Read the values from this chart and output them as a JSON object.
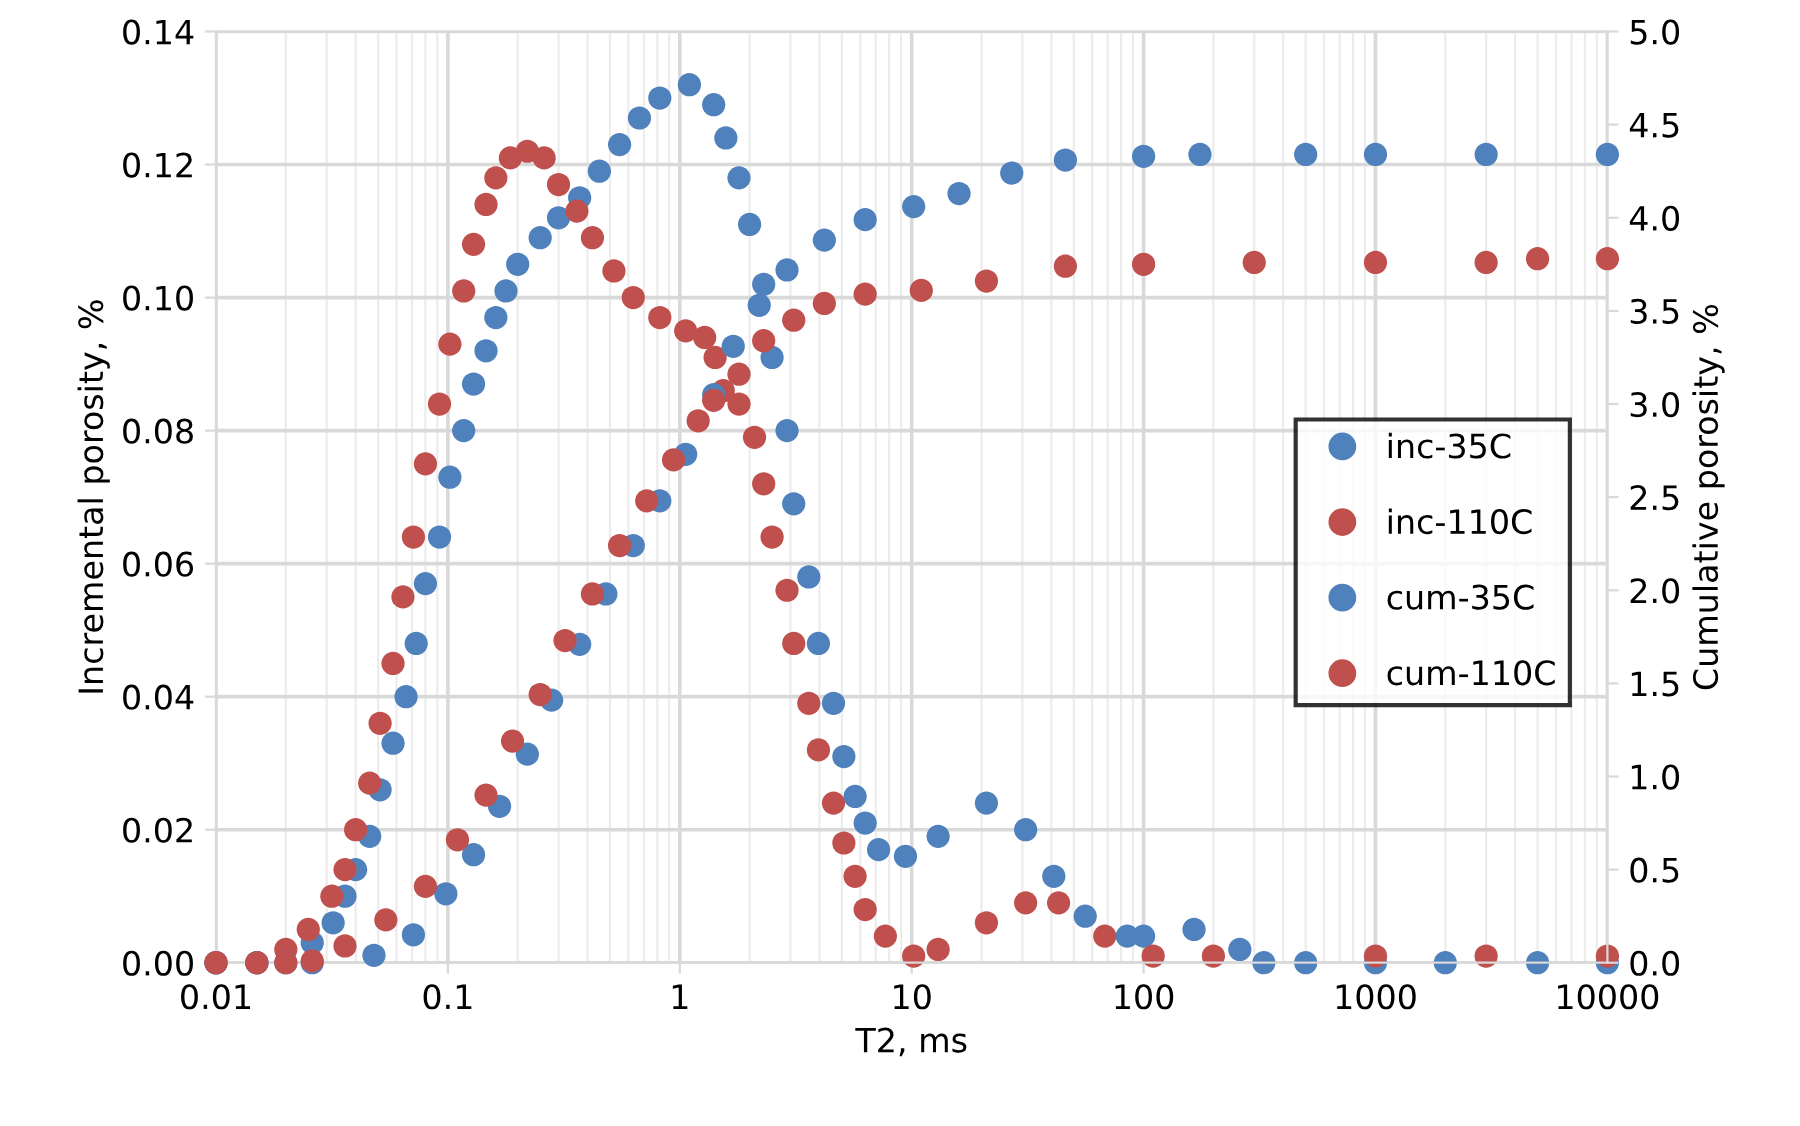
{
  "chart_data": {
    "type": "scatter",
    "xlabel": "T2, ms",
    "ylabel": "Incremental porosity, %",
    "y2label": "Cumulative porosity, %",
    "log": "x",
    "grid": true,
    "legend": "right",
    "marker": "circle",
    "xlim": [
      0.01,
      10000
    ],
    "xticks": [
      0.01,
      0.1,
      1,
      10,
      100,
      1000,
      10000
    ],
    "ylim": [
      0,
      0.14
    ],
    "yticks": [
      {
        "value": 0,
        "label": "0.00"
      },
      {
        "value": 0.02,
        "label": "0.02"
      },
      {
        "value": 0.04,
        "label": "0.04"
      },
      {
        "value": 0.06,
        "label": "0.06"
      },
      {
        "value": 0.08,
        "label": "0.08"
      },
      {
        "value": 0.1,
        "label": "0.10"
      },
      {
        "value": 0.12,
        "label": "0.12"
      },
      {
        "value": 0.14,
        "label": "0.14"
      }
    ],
    "y2lim": [
      0,
      5
    ],
    "y2ticks": [
      {
        "value": 0,
        "label": "0.0"
      },
      {
        "value": 0.5,
        "label": "0.5"
      },
      {
        "value": 1,
        "label": "1.0"
      },
      {
        "value": 1.5,
        "label": "1.5"
      },
      {
        "value": 2,
        "label": "2.0"
      },
      {
        "value": 2.5,
        "label": "2.5"
      },
      {
        "value": 3,
        "label": "3.0"
      },
      {
        "value": 3.5,
        "label": "3.5"
      },
      {
        "value": 4,
        "label": "4.0"
      },
      {
        "value": 4.5,
        "label": "4.5"
      },
      {
        "value": 5,
        "label": "5.0"
      }
    ],
    "series": [
      {
        "name": "inc-35C",
        "color": "#4f81bd",
        "x": [
          0.01,
          0.015,
          0.026,
          0.032,
          0.036,
          0.04,
          0.046,
          0.051,
          0.058,
          0.066,
          0.073,
          0.08,
          0.092,
          0.102,
          0.117,
          0.129,
          0.146,
          0.161,
          0.178,
          0.2,
          0.25,
          0.3,
          0.37,
          0.45,
          0.55,
          0.67,
          0.82,
          1.1,
          1.4,
          1.58,
          1.8,
          2.0,
          2.3,
          2.5,
          2.9,
          3.1,
          3.6,
          3.96,
          4.6,
          5.1,
          5.7,
          6.3,
          7.2,
          9.4,
          13,
          21,
          31,
          41,
          56,
          85,
          100,
          165,
          260,
          330,
          500,
          1000,
          2000,
          5000,
          10000
        ],
        "values": [
          0,
          0,
          0.003,
          0.006,
          0.01,
          0.014,
          0.019,
          0.026,
          0.033,
          0.04,
          0.048,
          0.057,
          0.064,
          0.073,
          0.08,
          0.087,
          0.092,
          0.097,
          0.101,
          0.105,
          0.109,
          0.112,
          0.115,
          0.119,
          0.123,
          0.127,
          0.13,
          0.132,
          0.129,
          0.124,
          0.118,
          0.111,
          0.102,
          0.091,
          0.08,
          0.069,
          0.058,
          0.048,
          0.039,
          0.031,
          0.025,
          0.021,
          0.017,
          0.016,
          0.019,
          0.024,
          0.02,
          0.013,
          0.007,
          0.004,
          0.004,
          0.005,
          0.002,
          0,
          0,
          0,
          0,
          0,
          0
        ]
      },
      {
        "name": "inc-110C",
        "color": "#c0504d",
        "x": [
          0.01,
          0.015,
          0.02,
          0.025,
          0.0316,
          0.036,
          0.04,
          0.046,
          0.051,
          0.058,
          0.064,
          0.071,
          0.08,
          0.092,
          0.102,
          0.117,
          0.129,
          0.146,
          0.161,
          0.186,
          0.22,
          0.26,
          0.3,
          0.36,
          0.42,
          0.52,
          0.63,
          0.82,
          1.06,
          1.28,
          1.42,
          1.54,
          1.8,
          2.1,
          2.3,
          2.5,
          2.9,
          3.1,
          3.6,
          3.96,
          4.6,
          5.1,
          5.7,
          6.3,
          7.7,
          10.2,
          13,
          21,
          31,
          43,
          68,
          110,
          200,
          1000,
          3000,
          10000
        ],
        "values": [
          0,
          0,
          0.002,
          0.005,
          0.01,
          0.014,
          0.02,
          0.027,
          0.036,
          0.045,
          0.055,
          0.064,
          0.075,
          0.084,
          0.093,
          0.101,
          0.108,
          0.114,
          0.118,
          0.121,
          0.122,
          0.121,
          0.117,
          0.113,
          0.109,
          0.104,
          0.1,
          0.097,
          0.095,
          0.094,
          0.091,
          0.086,
          0.084,
          0.079,
          0.072,
          0.064,
          0.056,
          0.048,
          0.039,
          0.032,
          0.024,
          0.018,
          0.013,
          0.008,
          0.004,
          0.001,
          0.002,
          0.006,
          0.009,
          0.009,
          0.004,
          0.001,
          0.001,
          0.001,
          0.001,
          0.001
        ]
      },
      {
        "name": "cum-35C",
        "color": "#4f81bd",
        "axis": "y2",
        "x": [
          0.01,
          0.015,
          0.02,
          0.026,
          0.048,
          0.071,
          0.098,
          0.129,
          0.167,
          0.22,
          0.28,
          0.37,
          0.48,
          0.63,
          0.82,
          1.06,
          1.4,
          1.7,
          2.2,
          2.9,
          4.2,
          6.3,
          10.2,
          16,
          27,
          46,
          100,
          175,
          500,
          1000,
          3000,
          10000
        ],
        "values": [
          0,
          0,
          0,
          0,
          0.04,
          0.15,
          0.37,
          0.58,
          0.84,
          1.12,
          1.41,
          1.71,
          1.98,
          2.24,
          2.48,
          2.73,
          3.05,
          3.31,
          3.53,
          3.72,
          3.88,
          3.99,
          4.06,
          4.13,
          4.24,
          4.31,
          4.33,
          4.34,
          4.34,
          4.34,
          4.34,
          4.34
        ]
      },
      {
        "name": "cum-110C",
        "color": "#c0504d",
        "axis": "y2",
        "x": [
          0.01,
          0.015,
          0.02,
          0.026,
          0.036,
          0.054,
          0.08,
          0.11,
          0.146,
          0.19,
          0.25,
          0.32,
          0.42,
          0.55,
          0.72,
          0.94,
          1.2,
          1.4,
          1.8,
          2.3,
          3.1,
          4.2,
          6.3,
          11,
          21,
          46,
          100,
          300,
          1000,
          3000,
          5000,
          10000
        ],
        "values": [
          0,
          0,
          0,
          0.01,
          0.09,
          0.23,
          0.41,
          0.66,
          0.9,
          1.19,
          1.44,
          1.73,
          1.98,
          2.24,
          2.48,
          2.7,
          2.91,
          3.02,
          3.16,
          3.34,
          3.45,
          3.54,
          3.59,
          3.61,
          3.66,
          3.74,
          3.75,
          3.76,
          3.76,
          3.76,
          3.78,
          3.78
        ]
      }
    ]
  }
}
